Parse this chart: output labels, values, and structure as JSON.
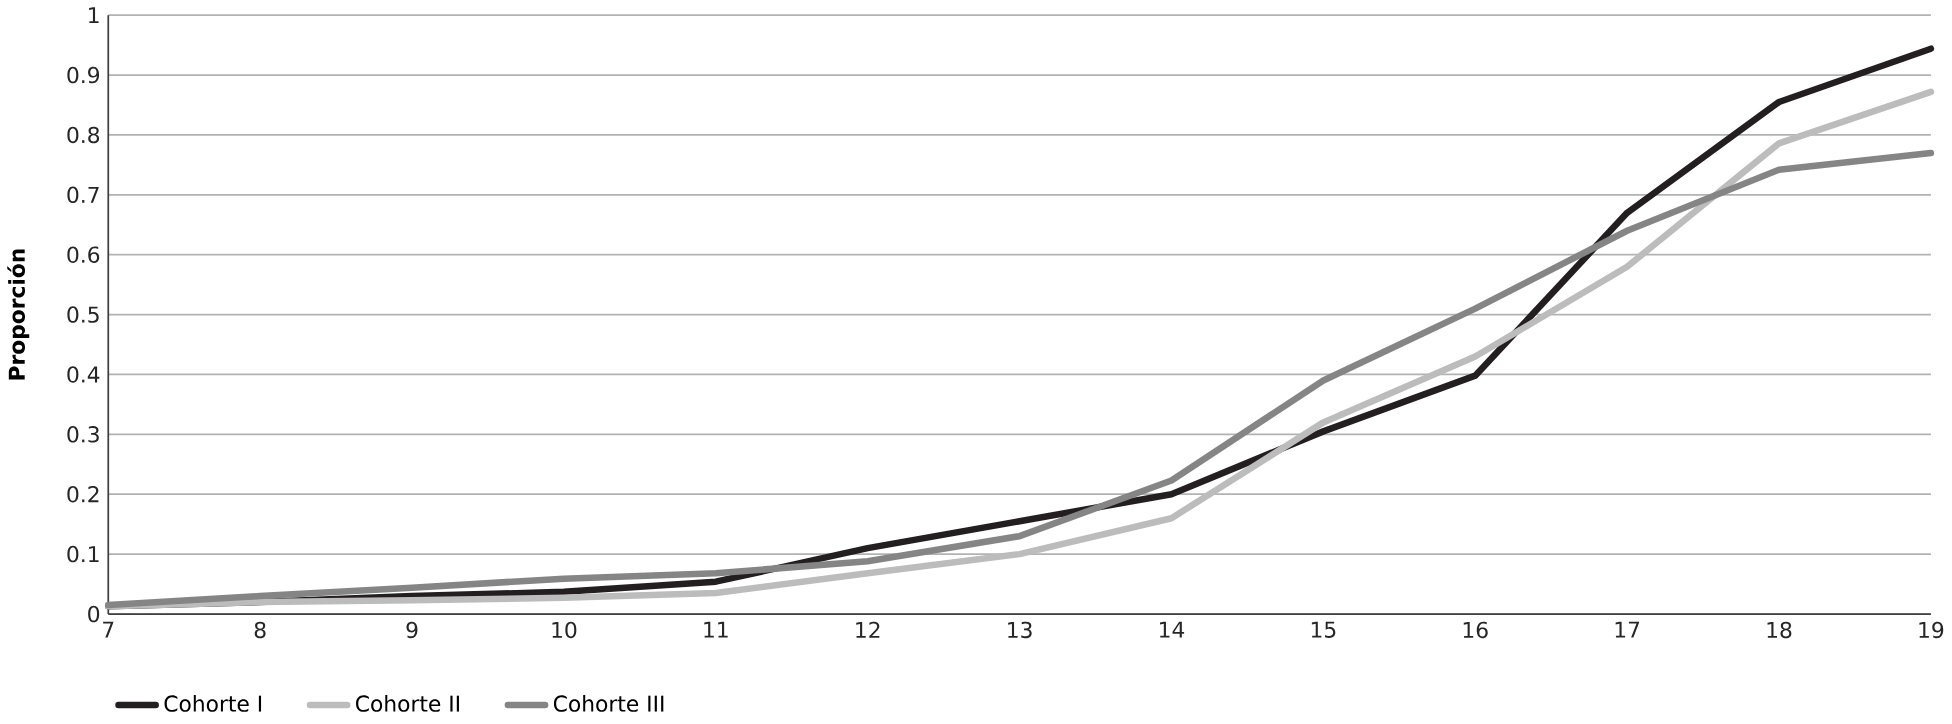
{
  "chart_data": {
    "type": "line",
    "ylabel": "Proporción",
    "x": [
      7,
      8,
      9,
      10,
      11,
      12,
      13,
      14,
      15,
      16,
      17,
      18,
      19
    ],
    "xlim": [
      7,
      19
    ],
    "xticks": [
      7,
      8,
      9,
      10,
      11,
      12,
      13,
      14,
      15,
      16,
      17,
      18,
      19
    ],
    "ylim": [
      0,
      1
    ],
    "yticks": [
      0,
      0.1,
      0.2,
      0.3,
      0.4,
      0.5,
      0.6,
      0.7,
      0.8,
      0.9,
      1
    ],
    "grid": "y",
    "legend": "bottom left",
    "marker": "none",
    "line_style": "solid",
    "series": [
      {
        "name": "Cohorte I",
        "color": "#231f20",
        "values": [
          0.013,
          0.02,
          0.03,
          0.037,
          0.054,
          0.11,
          0.155,
          0.2,
          0.305,
          0.398,
          0.67,
          0.855,
          0.944
        ]
      },
      {
        "name": "Cohorte II",
        "color": "#bcbcbc",
        "values": [
          0.013,
          0.02,
          0.023,
          0.027,
          0.035,
          0.068,
          0.1,
          0.16,
          0.32,
          0.43,
          0.58,
          0.786,
          0.872
        ]
      },
      {
        "name": "Cohorte III",
        "color": "#858585",
        "values": [
          0.015,
          0.03,
          0.044,
          0.059,
          0.068,
          0.088,
          0.13,
          0.223,
          0.39,
          0.51,
          0.64,
          0.742,
          0.77
        ]
      }
    ]
  }
}
